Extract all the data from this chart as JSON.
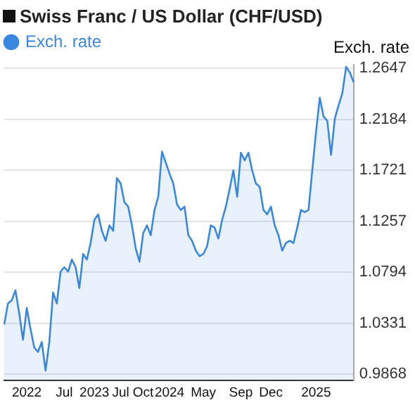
{
  "chart_data": {
    "type": "area",
    "title": "Swiss Franc / US Dollar (CHF/USD)",
    "ylabel": "Exch. rate",
    "categories": [
      null,
      null,
      null,
      null,
      null,
      null,
      "2022",
      null,
      null,
      null,
      null,
      null,
      null,
      null,
      null,
      null,
      "Jul",
      null,
      null,
      null,
      null,
      null,
      null,
      null,
      "2023",
      null,
      null,
      null,
      null,
      null,
      null,
      "Jul",
      null,
      null,
      null,
      null,
      null,
      "Oct",
      null,
      null,
      null,
      null,
      null,
      null,
      "2024",
      null,
      null,
      null,
      null,
      null,
      null,
      null,
      null,
      "May",
      null,
      null,
      null,
      null,
      null,
      null,
      null,
      null,
      null,
      "Sep",
      null,
      null,
      null,
      null,
      null,
      null,
      null,
      "Dec",
      null,
      null,
      null,
      null,
      null,
      null,
      null,
      null,
      null,
      null,
      null,
      "2025",
      null,
      null,
      null,
      null,
      null,
      null,
      null,
      null,
      null,
      null
    ],
    "series": [
      {
        "name": "Exch. rate",
        "color": "#3a87e0",
        "values": [
          1.032,
          1.051,
          1.054,
          1.063,
          1.042,
          1.018,
          1.047,
          1.028,
          1.011,
          1.007,
          1.016,
          0.99,
          1.016,
          1.061,
          1.051,
          1.08,
          1.084,
          1.08,
          1.091,
          1.084,
          1.065,
          1.096,
          1.091,
          1.106,
          1.127,
          1.132,
          1.117,
          1.108,
          1.122,
          1.117,
          1.165,
          1.16,
          1.143,
          1.139,
          1.122,
          1.101,
          1.089,
          1.115,
          1.122,
          1.113,
          1.136,
          1.148,
          1.189,
          1.179,
          1.169,
          1.16,
          1.141,
          1.136,
          1.139,
          1.113,
          1.108,
          1.099,
          1.094,
          1.096,
          1.103,
          1.122,
          1.12,
          1.11,
          1.127,
          1.139,
          1.155,
          1.172,
          1.148,
          1.188,
          1.181,
          1.188,
          1.172,
          1.16,
          1.157,
          1.136,
          1.132,
          1.139,
          1.122,
          1.113,
          1.099,
          1.106,
          1.108,
          1.106,
          1.12,
          1.136,
          1.134,
          1.136,
          1.172,
          1.207,
          1.238,
          1.221,
          1.217,
          1.186,
          1.219,
          1.231,
          1.242,
          1.266,
          1.261,
          1.252
        ]
      }
    ],
    "ylim": [
      0.981,
      1.268
    ],
    "yticks": [
      {
        "value": 0.9868,
        "label": "0.9868"
      },
      {
        "value": 1.0331,
        "label": "1.0331"
      },
      {
        "value": 1.0794,
        "label": "1.0794"
      },
      {
        "value": 1.1257,
        "label": "1.1257"
      },
      {
        "value": 1.1721,
        "label": "1.1721"
      },
      {
        "value": 1.2184,
        "label": "1.2184"
      },
      {
        "value": 1.2647,
        "label": "1.2647"
      }
    ],
    "grid": "y",
    "legend": "top left"
  }
}
